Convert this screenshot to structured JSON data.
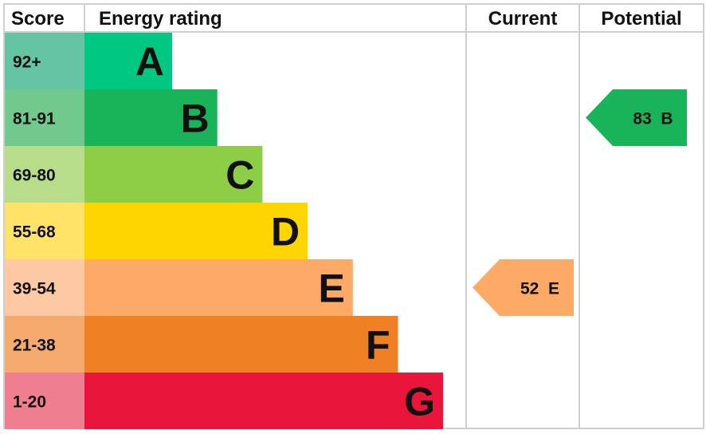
{
  "chart_data": {
    "type": "table",
    "headers": {
      "score": "Score",
      "rating": "Energy rating",
      "current": "Current",
      "potential": "Potential"
    },
    "bands": [
      {
        "score": "92+",
        "letter": "A",
        "color": "#00c781",
        "score_color": "#64c4a4"
      },
      {
        "score": "81-91",
        "letter": "B",
        "color": "#19b459",
        "score_color": "#72c98d"
      },
      {
        "score": "69-80",
        "letter": "C",
        "color": "#8dce46",
        "score_color": "#b7dd8a"
      },
      {
        "score": "55-68",
        "letter": "D",
        "color": "#ffd500",
        "score_color": "#ffe368"
      },
      {
        "score": "39-54",
        "letter": "E",
        "color": "#fcaa65",
        "score_color": "#fdc9a2"
      },
      {
        "score": "21-38",
        "letter": "F",
        "color": "#ef8023",
        "score_color": "#f4aa6c"
      },
      {
        "score": "1-20",
        "letter": "G",
        "color": "#e9153b",
        "score_color": "#f07e91"
      }
    ],
    "current": {
      "value": 52,
      "band": "E",
      "label": "52  E",
      "color": "#fcaa65"
    },
    "potential": {
      "value": 83,
      "band": "B",
      "label": "83  B",
      "color": "#19b459"
    }
  }
}
